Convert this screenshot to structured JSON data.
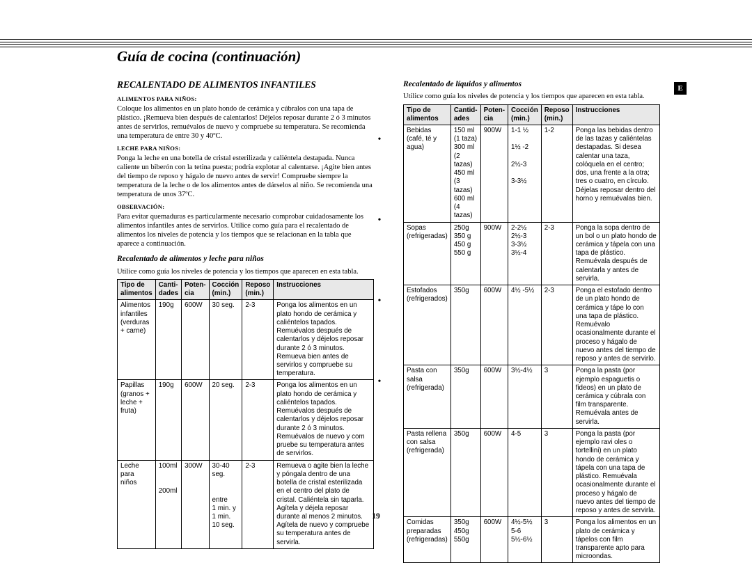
{
  "section_title": "Guía de cocina (continuación)",
  "lang_badge": "E",
  "page_number": "19",
  "left": {
    "heading": "RECALENTADO DE ALIMENTOS INFANTILES",
    "mini1": "ALIMENTOS PARA NIÑOS:",
    "p1": "Coloque los alimentos en un plato hondo de cerámica y cúbralos con una tapa de plástico. ¡Remueva bien después de calentarlos! Déjelos reposar durante 2 ó 3 minutos antes de servirlos, remuévalos de nuevo y compruebe su temperatura. Se recomienda una temperatura de entre 30 y 40ºC.",
    "mini2": "LECHE PARA NIÑOS:",
    "p2": "Ponga la leche en una botella de cristal esterilizada y caliéntela destapada. Nunca caliente un biberón con la tetina puesta; podría explotar al calentarse. ¡Agite bien antes del tiempo de reposo y hágalo de nuevo antes de servir! Compruebe siempre la temperatura de la leche o de los alimentos antes de dárselos al niño. Se recomienda una temperatura de unos 37ºC.",
    "mini3": "OBSERVACIÓN:",
    "p3": "Para evitar quemaduras es particularmente necesario comprobar cuidadosamente los alimentos infantiles antes de servirlos. Utilice como guía para el recalentado de alimentos los niveles de potencia y los tiempos que se relacionan en la tabla que aparece a continuación.",
    "sub2": "Recalentado de alimentos y leche para niños",
    "p4": "Utilice como guía los niveles de potencia y los tiempos que aparecen en esta tabla."
  },
  "t1": {
    "h": [
      "Tipo de\nalimentos",
      "Canti-\ndades",
      "Poten-\ncia",
      "Cocción\n(min.)",
      "Reposo\n(min.)",
      "Instrucciones"
    ],
    "w": [
      "14%",
      "10%",
      "10%",
      "13%",
      "10%",
      "43%"
    ],
    "rows": [
      [
        "Alimentos\ninfantiles\n(verduras\n+ carne)",
        "190g",
        "600W",
        "30 seg.",
        "2-3",
        "Ponga los alimentos en un plato hondo de cerámica y caliéntelos tapados. Remuévalos después de calentarlos y déjelos reposar durante 2 ó 3 minutos. Remueva bien antes de servirlos y compruebe su temperatura."
      ],
      [
        "Papillas\n(granos +\nleche +\nfruta)",
        "190g",
        "600W",
        "20 seg.",
        "2-3",
        "Ponga los alimentos en un plato hondo de cerámica y caliéntelos tapados. Remuévalos después de calentarlos y déjelos reposar durante 2 ó 3 minutos. Remuévalos de nuevo y com pruebe su temperatura antes de servirlos."
      ],
      [
        "Leche\npara\nniños",
        "100ml\n\n\n200ml",
        "300W",
        "30-40 seg.\n\n\nentre\n1 min. y\n1 min.\n10 seg.",
        "2-3",
        "Remueva o agite bien la leche y póngala dentro de una botella de cristal esterilizada en el centro del plato de cristal. Caliéntela sin taparla. Agítela y déjela reposar durante al menos 2 minutos. Agítela de nuevo y compruebe su temperatura antes de servirla."
      ]
    ]
  },
  "right": {
    "sub": "Recalentado de líquidos y alimentos",
    "p1": "Utilice como guía los niveles de potencia y los tiempos que aparecen en esta tabla."
  },
  "t2": {
    "h": [
      "Tipo de\nalimentos",
      "Cantid-\nades",
      "Poten-\ncia",
      "Cocción\n(min.)",
      "Reposo\n(min.)",
      "Instrucciones"
    ],
    "w": [
      "16%",
      "11%",
      "9%",
      "11%",
      "10%",
      "43%"
    ],
    "rows": [
      [
        "Bebidas\n(café, té y\nagua)",
        "150 ml\n(1 taza)\n300 ml\n(2 tazas)\n450 ml\n(3 tazas)\n600 ml\n(4 tazas)",
        "900W",
        "1-1 ½\n\n1½ -2\n\n2½-3\n\n3-3½",
        "1-2",
        "Ponga las bebidas dentro de las tazas y caliéntelas destapadas. Si desea calentar una taza, colóquela en el centro; dos, una frente a la otra; tres o cuatro, en círculo. Déjelas reposar dentro del horno y remuévalas bien."
      ],
      [
        "Sopas\n(refrigeradas)",
        "250g\n350 g\n450 g\n550 g",
        "900W",
        "2-2½\n2½-3\n3-3½\n3½-4",
        "2-3",
        "Ponga la sopa dentro de un bol o un plato hondo de cerámica y tápela con una tapa de plástico. Remuévala después de calentarla y antes de servirla."
      ],
      [
        "Estofados\n(refrigerados)",
        "350g",
        "600W",
        "4½ -5½",
        "2-3",
        "Ponga el estofado dentro de un plato hondo de cerámica y tápe lo con una tapa de plástico. Remuévalo ocasionalmente durante el proceso y hágalo de nuevo antes del tiempo de reposo y antes de servirlo."
      ],
      [
        "Pasta con\nsalsa\n(refrigerada)",
        "350g",
        "600W",
        "3½-4½",
        "3",
        "Ponga la pasta (por ejemplo espaguetis o fideos) en un plato de cerámica y cúbrala con film transparente. Remuévala antes de servirla."
      ],
      [
        "Pasta rellena\ncon salsa\n(refrigerada)",
        "350g",
        "600W",
        "4-5",
        "3",
        "Ponga la pasta (por ejemplo ravi oles o tortellini) en un plato hondo de cerámica y tápela con una tapa de plástico. Remuévala ocasionalmente durante el proceso y hágalo de nuevo antes del tiempo de reposo y antes de servirla."
      ],
      [
        "Comidas\npreparadas\n(refrigeradas)",
        "350g\n450g\n550g",
        "600W",
        "4½-5½\n5-6\n5½-6½",
        "3",
        "Ponga los alimentos en un plato de cerámica y tápelos con film transparente apto para microondas."
      ]
    ]
  }
}
